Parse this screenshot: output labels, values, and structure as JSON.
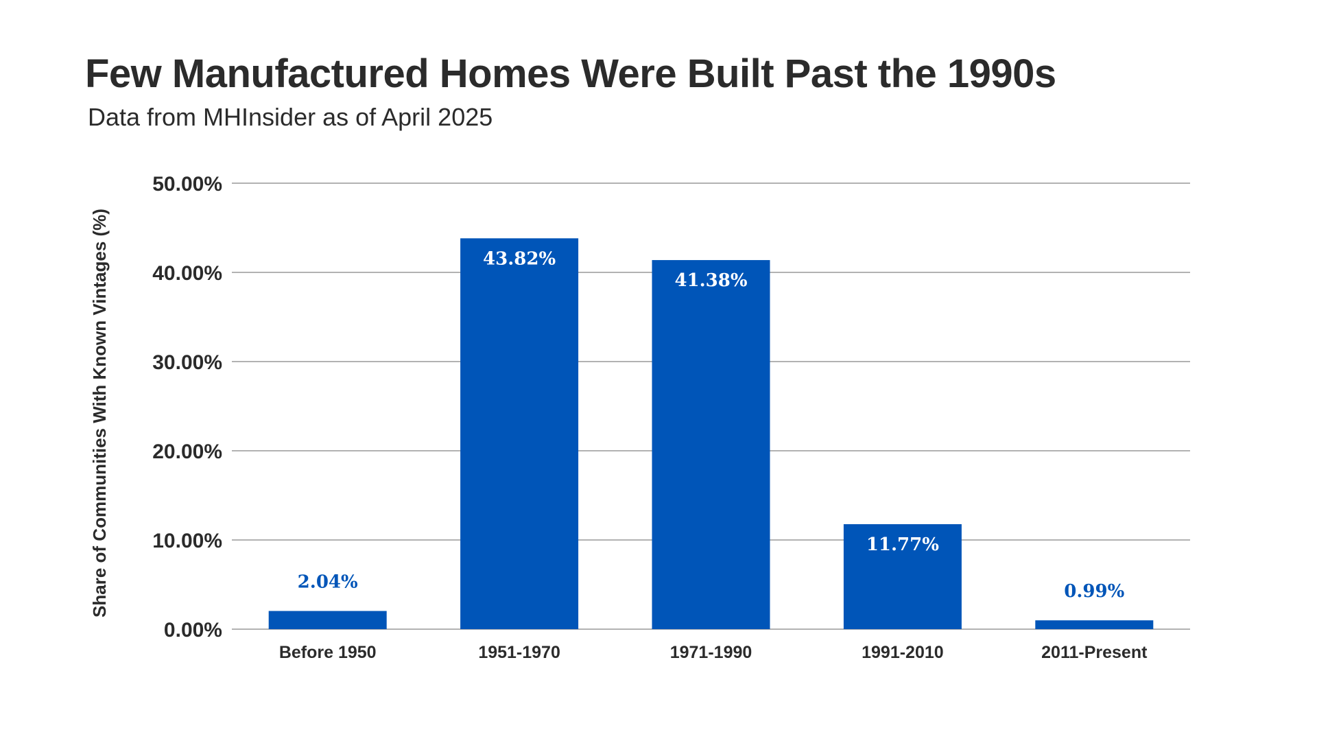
{
  "chart_data": {
    "type": "bar",
    "title": "Few Manufactured Homes Were Built Past the 1990s",
    "subtitle": "Data from MHInsider as of April 2025",
    "xlabel": "",
    "ylabel": "Share of Communities With Known Vintages (%)",
    "categories": [
      "Before 1950",
      "1951-1970",
      "1971-1990",
      "1991-2010",
      "2011-Present"
    ],
    "values": [
      2.04,
      43.82,
      41.38,
      11.77,
      0.99
    ],
    "data_labels": [
      "2.04%",
      "43.82%",
      "41.38%",
      "11.77%",
      "0.99%"
    ],
    "ylim": [
      0,
      50
    ],
    "yticks": [
      0,
      10,
      20,
      30,
      40,
      50
    ],
    "ytick_labels": [
      "0.00%",
      "10.00%",
      "20.00%",
      "30.00%",
      "40.00%",
      "50.00%"
    ],
    "grid": true,
    "legend": "none",
    "colors": {
      "bar": "#0055B8",
      "label_inside": "#ffffff",
      "label_outside": "#0055B8",
      "grid": "#999999"
    }
  }
}
